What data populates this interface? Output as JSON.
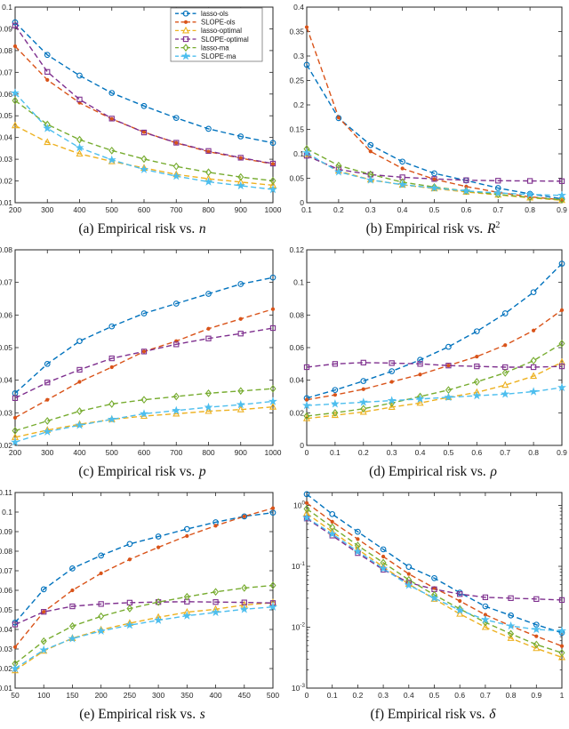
{
  "figure_note": "Six-panel empirical risk comparison figure",
  "series_order": [
    "lasso-ols",
    "SLOPE-ols",
    "lasso-optimal",
    "SLOPE-optimal",
    "lasso-ma",
    "SLOPE-ma"
  ],
  "series_styles": {
    "lasso-ols": {
      "color": "#0072BD",
      "marker": "o"
    },
    "SLOPE-ols": {
      "color": "#D95319",
      "marker": "dot"
    },
    "lasso-optimal": {
      "color": "#EDB120",
      "marker": "tri"
    },
    "SLOPE-optimal": {
      "color": "#7E2F8E",
      "marker": "sq"
    },
    "lasso-ma": {
      "color": "#77AC30",
      "marker": "di"
    },
    "SLOPE-ma": {
      "color": "#4DBEEE",
      "marker": "star"
    }
  },
  "chart_data": "see charts[] below (same object, bound by renderer)",
  "charts": [
    {
      "id": "a",
      "type": "line",
      "legend": true,
      "caption_prefix": "(a) Empirical risk vs.",
      "caption_var": "n",
      "caption_sup": "",
      "x": [
        200,
        300,
        400,
        500,
        600,
        700,
        800,
        900,
        1000
      ],
      "xticklabels": [
        "200",
        "300",
        "400",
        "500",
        "600",
        "700",
        "800",
        "900",
        "1000"
      ],
      "xlim": [
        200,
        1000
      ],
      "ylim": [
        0.01,
        0.1
      ],
      "yticks": [
        0.01,
        0.02,
        0.03,
        0.04,
        0.05,
        0.06,
        0.07,
        0.08,
        0.09,
        0.1
      ],
      "yticklabels": [
        "0.01",
        "0.02",
        "0.03",
        "0.04",
        "0.05",
        "0.06",
        "0.07",
        "0.08",
        "0.09",
        "0.1"
      ],
      "series": {
        "lasso-ols": [
          0.093,
          0.078,
          0.0685,
          0.0605,
          0.0545,
          0.049,
          0.044,
          0.0405,
          0.0375
        ],
        "SLOPE-ols": [
          0.082,
          0.0665,
          0.056,
          0.0485,
          0.0425,
          0.0375,
          0.0335,
          0.0305,
          0.0278
        ],
        "lasso-optimal": [
          0.0455,
          0.0378,
          0.0325,
          0.029,
          0.026,
          0.023,
          0.021,
          0.0195,
          0.018
        ],
        "SLOPE-optimal": [
          0.0915,
          0.0702,
          0.0575,
          0.0487,
          0.0423,
          0.0376,
          0.0338,
          0.0307,
          0.028
        ],
        "lasso-ma": [
          0.057,
          0.046,
          0.039,
          0.034,
          0.0301,
          0.0267,
          0.024,
          0.0218,
          0.0201
        ],
        "SLOPE-ma": [
          0.0605,
          0.0442,
          0.0353,
          0.0297,
          0.0253,
          0.0222,
          0.0196,
          0.0178,
          0.0161
        ]
      }
    },
    {
      "id": "b",
      "type": "line",
      "legend": false,
      "caption_prefix": "(b) Empirical risk vs.",
      "caption_var": "R",
      "caption_sup": "2",
      "x": [
        0.1,
        0.2,
        0.3,
        0.4,
        0.5,
        0.6,
        0.7,
        0.8,
        0.9
      ],
      "xticklabels": [
        "0.1",
        "0.2",
        "0.3",
        "0.4",
        "0.5",
        "0.6",
        "0.7",
        "0.8",
        "0.9"
      ],
      "xlim": [
        0.1,
        0.9
      ],
      "ylim": [
        0,
        0.4
      ],
      "yticks": [
        0,
        0.05,
        0.1,
        0.15,
        0.2,
        0.25,
        0.3,
        0.35,
        0.4
      ],
      "yticklabels": [
        "0",
        "0.05",
        "0.1",
        "0.15",
        "0.2",
        "0.25",
        "0.3",
        "0.35",
        "0.4"
      ],
      "series": {
        "lasso-ols": [
          0.282,
          0.173,
          0.118,
          0.084,
          0.06,
          0.0455,
          0.03,
          0.018,
          0.008
        ],
        "SLOPE-ols": [
          0.359,
          0.174,
          0.105,
          0.07,
          0.048,
          0.033,
          0.021,
          0.012,
          0.006
        ],
        "lasso-optimal": [
          0.099,
          0.065,
          0.047,
          0.0365,
          0.029,
          0.022,
          0.016,
          0.01,
          0.005
        ],
        "SLOPE-optimal": [
          0.096,
          0.068,
          0.0575,
          0.052,
          0.0485,
          0.046,
          0.045,
          0.0445,
          0.044
        ],
        "lasso-ma": [
          0.11,
          0.076,
          0.058,
          0.042,
          0.032,
          0.024,
          0.017,
          0.011,
          0.006
        ],
        "SLOPE-ma": [
          0.102,
          0.063,
          0.0465,
          0.037,
          0.03,
          0.024,
          0.02,
          0.017,
          0.015
        ]
      }
    },
    {
      "id": "c",
      "type": "line",
      "legend": false,
      "caption_prefix": "(c) Empirical risk vs.",
      "caption_var": "p",
      "caption_sup": "",
      "x": [
        200,
        300,
        400,
        500,
        600,
        700,
        800,
        900,
        1000
      ],
      "xticklabels": [
        "200",
        "300",
        "400",
        "500",
        "600",
        "700",
        "800",
        "900",
        "1000"
      ],
      "xlim": [
        200,
        1000
      ],
      "ylim": [
        0.02,
        0.08
      ],
      "yticks": [
        0.02,
        0.03,
        0.04,
        0.05,
        0.06,
        0.07,
        0.08
      ],
      "yticklabels": [
        "0.02",
        "0.03",
        "0.04",
        "0.05",
        "0.06",
        "0.07",
        "0.08"
      ],
      "series": {
        "lasso-ols": [
          0.036,
          0.045,
          0.052,
          0.0565,
          0.0605,
          0.0635,
          0.0665,
          0.0695,
          0.0715
        ],
        "SLOPE-ols": [
          0.0285,
          0.034,
          0.0395,
          0.044,
          0.0488,
          0.052,
          0.0558,
          0.0588,
          0.0618
        ],
        "lasso-optimal": [
          0.0225,
          0.0247,
          0.0265,
          0.028,
          0.029,
          0.0297,
          0.0305,
          0.031,
          0.0318
        ],
        "SLOPE-optimal": [
          0.0345,
          0.0393,
          0.0432,
          0.0467,
          0.0488,
          0.051,
          0.0528,
          0.0543,
          0.056
        ],
        "lasso-ma": [
          0.0245,
          0.0275,
          0.0305,
          0.0327,
          0.034,
          0.035,
          0.036,
          0.0367,
          0.0374
        ],
        "SLOPE-ma": [
          0.021,
          0.0242,
          0.0262,
          0.028,
          0.0297,
          0.0307,
          0.0317,
          0.0325,
          0.0335
        ]
      }
    },
    {
      "id": "d",
      "type": "line",
      "legend": false,
      "caption_prefix": "(d) Empirical risk vs.",
      "caption_var": "ρ",
      "caption_sup": "",
      "x": [
        0,
        0.1,
        0.2,
        0.3,
        0.4,
        0.5,
        0.6,
        0.7,
        0.8,
        0.9
      ],
      "xticklabels": [
        "0",
        "0.1",
        "0.2",
        "0.3",
        "0.4",
        "0.5",
        "0.6",
        "0.7",
        "0.8",
        "0.9"
      ],
      "xlim": [
        0,
        0.9
      ],
      "ylim": [
        0,
        0.12
      ],
      "yticks": [
        0,
        0.02,
        0.04,
        0.06,
        0.08,
        0.1,
        0.12
      ],
      "yticklabels": [
        "0",
        "0.02",
        "0.04",
        "0.06",
        "0.08",
        "0.1",
        "0.12"
      ],
      "series": {
        "lasso-ols": [
          0.029,
          0.034,
          0.0395,
          0.0455,
          0.0525,
          0.0605,
          0.07,
          0.081,
          0.094,
          0.1115
        ],
        "SLOPE-ols": [
          0.028,
          0.031,
          0.0345,
          0.039,
          0.0435,
          0.049,
          0.0545,
          0.0615,
          0.0705,
          0.083
        ],
        "lasso-optimal": [
          0.0165,
          0.0185,
          0.0205,
          0.0235,
          0.026,
          0.0295,
          0.0325,
          0.037,
          0.0425,
          0.051
        ],
        "SLOPE-optimal": [
          0.048,
          0.05,
          0.0508,
          0.0505,
          0.05,
          0.049,
          0.0485,
          0.048,
          0.048,
          0.0485
        ],
        "lasso-ma": [
          0.018,
          0.02,
          0.0225,
          0.026,
          0.03,
          0.034,
          0.039,
          0.0445,
          0.052,
          0.0625
        ],
        "SLOPE-ma": [
          0.0245,
          0.0255,
          0.0265,
          0.0275,
          0.0285,
          0.0295,
          0.0305,
          0.0315,
          0.033,
          0.0355
        ]
      }
    },
    {
      "id": "e",
      "type": "line",
      "legend": false,
      "caption_prefix": "(e) Empirical risk vs.",
      "caption_var": "s",
      "caption_sup": "",
      "x": [
        50,
        100,
        150,
        200,
        250,
        300,
        350,
        400,
        450,
        500
      ],
      "xticklabels": [
        "50",
        "100",
        "150",
        "200",
        "250",
        "300",
        "350",
        "400",
        "450",
        "500"
      ],
      "xlim": [
        50,
        500
      ],
      "ylim": [
        0.01,
        0.11
      ],
      "yticks": [
        0.01,
        0.02,
        0.03,
        0.04,
        0.05,
        0.06,
        0.07,
        0.08,
        0.09,
        0.1,
        0.11
      ],
      "yticklabels": [
        "0.01",
        "0.02",
        "0.03",
        "0.04",
        "0.05",
        "0.06",
        "0.07",
        "0.08",
        "0.09",
        "0.1",
        "0.11"
      ],
      "series": {
        "lasso-ols": [
          0.0435,
          0.0605,
          0.0712,
          0.0778,
          0.0837,
          0.0875,
          0.0913,
          0.0948,
          0.0978,
          0.0997
        ],
        "SLOPE-ols": [
          0.031,
          0.049,
          0.06,
          0.0687,
          0.0758,
          0.082,
          0.0878,
          0.093,
          0.0978,
          0.102
        ],
        "lasso-optimal": [
          0.019,
          0.029,
          0.0355,
          0.0398,
          0.0432,
          0.0462,
          0.0488,
          0.0503,
          0.0525,
          0.0537
        ],
        "SLOPE-optimal": [
          0.0425,
          0.049,
          0.0518,
          0.053,
          0.0537,
          0.054,
          0.0542,
          0.054,
          0.0538,
          0.0535
        ],
        "lasso-ma": [
          0.0225,
          0.034,
          0.0417,
          0.0467,
          0.0507,
          0.054,
          0.0567,
          0.0592,
          0.0612,
          0.0625
        ],
        "SLOPE-ma": [
          0.02,
          0.0295,
          0.0353,
          0.0392,
          0.0422,
          0.0447,
          0.047,
          0.0487,
          0.0503,
          0.0515
        ]
      }
    },
    {
      "id": "f",
      "type": "line",
      "legend": false,
      "ylog": true,
      "caption_prefix": "(f) Empirical risk vs.",
      "caption_var": "δ",
      "caption_sup": "",
      "x": [
        0,
        0.1,
        0.2,
        0.3,
        0.4,
        0.5,
        0.6,
        0.7,
        0.8,
        0.9,
        1
      ],
      "xticklabels": [
        "0",
        "0.1",
        "0.2",
        "0.3",
        "0.4",
        "0.5",
        "0.6",
        "0.7",
        "0.8",
        "0.9",
        "1"
      ],
      "xlim": [
        0,
        1
      ],
      "ylim": [
        0.001,
        1.63
      ],
      "yticks": [
        1,
        0.1,
        0.01,
        0.001
      ],
      "ytick_exps": [
        "0",
        "-1",
        "-2",
        "-3"
      ],
      "series": {
        "lasso-ols": [
          1.53,
          0.72,
          0.37,
          0.19,
          0.098,
          0.064,
          0.037,
          0.022,
          0.0156,
          0.011,
          0.0081
        ],
        "SLOPE-ols": [
          1.1,
          0.54,
          0.28,
          0.145,
          0.075,
          0.044,
          0.027,
          0.016,
          0.0105,
          0.0071,
          0.0049
        ],
        "lasso-optimal": [
          0.74,
          0.37,
          0.19,
          0.098,
          0.051,
          0.029,
          0.0165,
          0.01,
          0.0066,
          0.0045,
          0.0032
        ],
        "SLOPE-optimal": [
          0.61,
          0.32,
          0.165,
          0.088,
          0.054,
          0.042,
          0.035,
          0.031,
          0.03,
          0.029,
          0.028
        ],
        "lasso-ma": [
          0.88,
          0.44,
          0.22,
          0.115,
          0.06,
          0.034,
          0.02,
          0.012,
          0.0078,
          0.0052,
          0.0038
        ],
        "SLOPE-ma": [
          0.63,
          0.34,
          0.176,
          0.092,
          0.049,
          0.03,
          0.019,
          0.0133,
          0.0105,
          0.0092,
          0.0087
        ]
      }
    }
  ]
}
